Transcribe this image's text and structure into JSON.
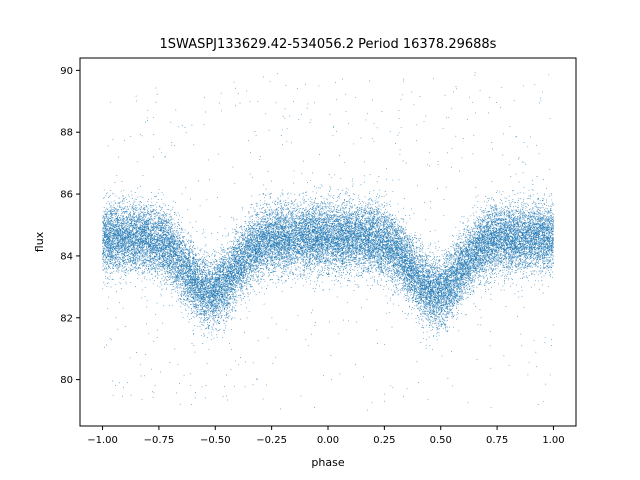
{
  "chart_data": {
    "type": "scatter",
    "title": "1SWASPJ133629.42-534056.2 Period 16378.29688s",
    "xlabel": "phase",
    "ylabel": "flux",
    "xlim": [
      -1.1,
      1.1
    ],
    "ylim": [
      78.5,
      90.4
    ],
    "x_ticks": [
      -1.0,
      -0.75,
      -0.5,
      -0.25,
      0.0,
      0.25,
      0.5,
      0.75,
      1.0
    ],
    "x_tick_labels": [
      "−1.00",
      "−0.75",
      "−0.50",
      "−0.25",
      "0.00",
      "0.25",
      "0.50",
      "0.75",
      "1.00"
    ],
    "y_ticks": [
      80,
      82,
      84,
      86,
      88,
      90
    ],
    "y_tick_labels": [
      "80",
      "82",
      "84",
      "86",
      "88",
      "90"
    ],
    "grid": false,
    "legend": "none",
    "point_color": "#1f77b4",
    "series": [
      {
        "phase_range": [
          -1.0,
          1.0
        ],
        "baseline_flux": 84.6,
        "baseline_scatter": 0.55,
        "dips": [
          {
            "phase_center": -0.52,
            "min_flux": 82.8,
            "half_width_phase": 0.15
          },
          {
            "phase_center": 0.48,
            "min_flux": 82.8,
            "half_width_phase": 0.15
          }
        ],
        "outlier_flux_range": [
          79.0,
          90.0
        ],
        "approx_point_count": 30000
      }
    ]
  }
}
